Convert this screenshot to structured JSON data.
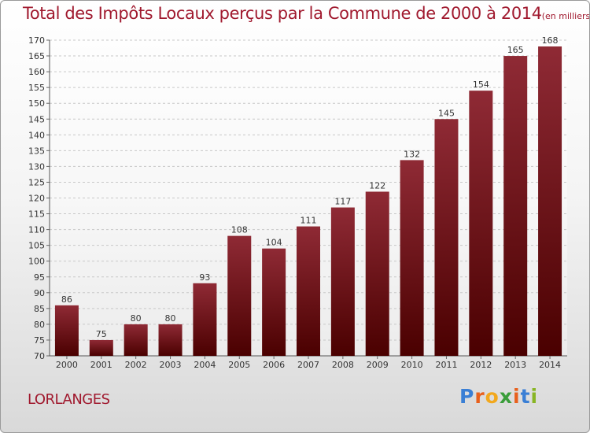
{
  "header": {
    "title": "Total des Impôts Locaux perçus par la Commune de 2000 à 2014",
    "unit": "(en milliers d'€)"
  },
  "footer": {
    "commune": "LORLANGES",
    "logo": "Proxiti"
  },
  "colors": {
    "accent": "#a0192e",
    "bar_light": "#8f2a35",
    "bar_dark": "#4a0000"
  },
  "chart_data": {
    "type": "bar",
    "title": "Total des Impôts Locaux perçus par la Commune de 2000 à 2014",
    "unit": "(en milliers d'€)",
    "categories": [
      "2000",
      "2001",
      "2002",
      "2003",
      "2004",
      "2005",
      "2006",
      "2007",
      "2008",
      "2009",
      "2010",
      "2011",
      "2012",
      "2013",
      "2014"
    ],
    "values": [
      86,
      75,
      80,
      80,
      93,
      108,
      104,
      111,
      117,
      122,
      132,
      145,
      154,
      165,
      168
    ],
    "ylim": [
      70,
      170
    ],
    "ytick_step": 5,
    "grid": true,
    "legend": "none"
  }
}
